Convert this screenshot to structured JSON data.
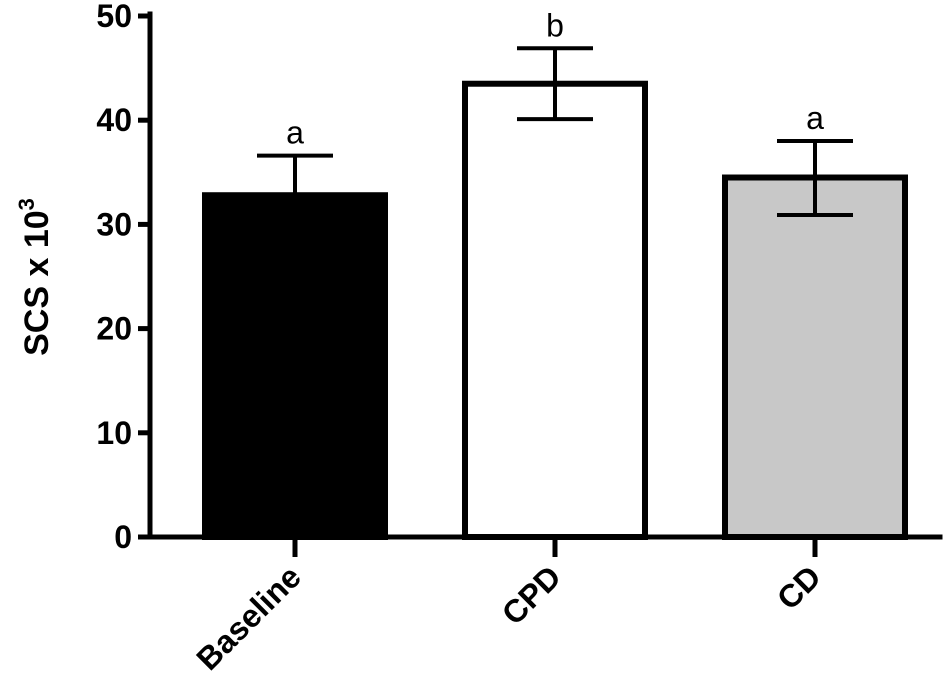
{
  "chart_data": {
    "type": "bar",
    "categories": [
      "Baseline",
      "CPD",
      "CD"
    ],
    "values": [
      32.8,
      43.5,
      34.5
    ],
    "errors_upper": [
      36.6,
      46.9,
      38.0
    ],
    "errors_lower": [
      29.0,
      40.1,
      30.9
    ],
    "significance": [
      "a",
      "b",
      "a"
    ],
    "colors": [
      "#000000",
      "#ffffff",
      "#c8c8c8"
    ],
    "ylabel_main": "SCS x 10",
    "ylabel_sup": "3",
    "ylim": [
      0,
      50
    ],
    "yticks": [
      0,
      10,
      20,
      30,
      40,
      50
    ],
    "grid": false
  }
}
